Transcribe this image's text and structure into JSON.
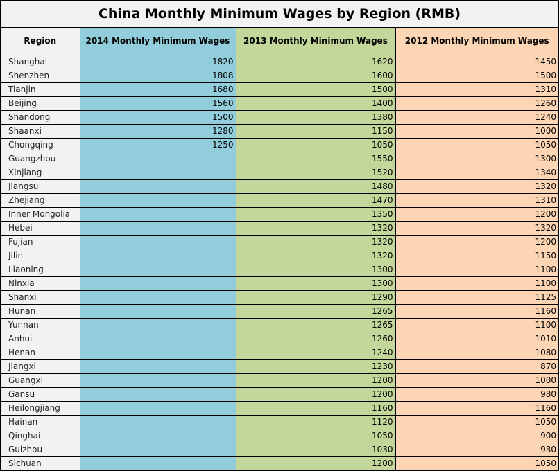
{
  "title": "China Monthly Minimum Wages by Region (RMB)",
  "columns": {
    "region": "Region",
    "y2014": "2014 Monthly Minimum Wages",
    "y2013": "2013 Monthly Minimum Wages",
    "y2012": "2012 Monthly Minimum Wages"
  },
  "colors": {
    "y2014": "#92cddc",
    "y2013": "#c4d79b",
    "y2012": "#fcd5b4",
    "region": "#f2f2f2"
  },
  "rows": [
    {
      "region": "Shanghai",
      "y2014": "1820",
      "y2013": "1620",
      "y2012": "1450"
    },
    {
      "region": "Shenzhen",
      "y2014": "1808",
      "y2013": "1600",
      "y2012": "1500"
    },
    {
      "region": "Tianjin",
      "y2014": "1680",
      "y2013": "1500",
      "y2012": "1310"
    },
    {
      "region": "Beijing",
      "y2014": "1560",
      "y2013": "1400",
      "y2012": "1260"
    },
    {
      "region": "Shandong",
      "y2014": "1500",
      "y2013": "1380",
      "y2012": "1240"
    },
    {
      "region": "Shaanxi",
      "y2014": "1280",
      "y2013": "1150",
      "y2012": "1000"
    },
    {
      "region": "Chongqing",
      "y2014": "1250",
      "y2013": "1050",
      "y2012": "1050"
    },
    {
      "region": "Guangzhou",
      "y2014": "",
      "y2013": "1550",
      "y2012": "1300"
    },
    {
      "region": "Xinjiang",
      "y2014": "",
      "y2013": "1520",
      "y2012": "1340"
    },
    {
      "region": "Jiangsu",
      "y2014": "",
      "y2013": "1480",
      "y2012": "1320"
    },
    {
      "region": "Zhejiang",
      "y2014": "",
      "y2013": "1470",
      "y2012": "1310"
    },
    {
      "region": "Inner Mongolia",
      "y2014": "",
      "y2013": "1350",
      "y2012": "1200"
    },
    {
      "region": "Hebei",
      "y2014": "",
      "y2013": "1320",
      "y2012": "1320"
    },
    {
      "region": "Fujian",
      "y2014": "",
      "y2013": "1320",
      "y2012": "1200"
    },
    {
      "region": "Jilin",
      "y2014": "",
      "y2013": "1320",
      "y2012": "1150"
    },
    {
      "region": "Liaoning",
      "y2014": "",
      "y2013": "1300",
      "y2012": "1100"
    },
    {
      "region": "Ninxia",
      "y2014": "",
      "y2013": "1300",
      "y2012": "1100"
    },
    {
      "region": "Shanxi",
      "y2014": "",
      "y2013": "1290",
      "y2012": "1125"
    },
    {
      "region": "Hunan",
      "y2014": "",
      "y2013": "1265",
      "y2012": "1160"
    },
    {
      "region": "Yunnan",
      "y2014": "",
      "y2013": "1265",
      "y2012": "1100"
    },
    {
      "region": "Anhui",
      "y2014": "",
      "y2013": "1260",
      "y2012": "1010"
    },
    {
      "region": "Henan",
      "y2014": "",
      "y2013": "1240",
      "y2012": "1080"
    },
    {
      "region": "Jiangxi",
      "y2014": "",
      "y2013": "1230",
      "y2012": "870"
    },
    {
      "region": "Guangxi",
      "y2014": "",
      "y2013": "1200",
      "y2012": "1000"
    },
    {
      "region": "Gansu",
      "y2014": "",
      "y2013": "1200",
      "y2012": "980"
    },
    {
      "region": "Heilongjiang",
      "y2014": "",
      "y2013": "1160",
      "y2012": "1160"
    },
    {
      "region": "Hainan",
      "y2014": "",
      "y2013": "1120",
      "y2012": "1050"
    },
    {
      "region": "Qinghai",
      "y2014": "",
      "y2013": "1050",
      "y2012": "900"
    },
    {
      "region": "Guizhou",
      "y2014": "",
      "y2013": "1030",
      "y2012": "930"
    },
    {
      "region": "Sichuan",
      "y2014": "",
      "y2013": "1200",
      "y2012": "1050"
    }
  ]
}
